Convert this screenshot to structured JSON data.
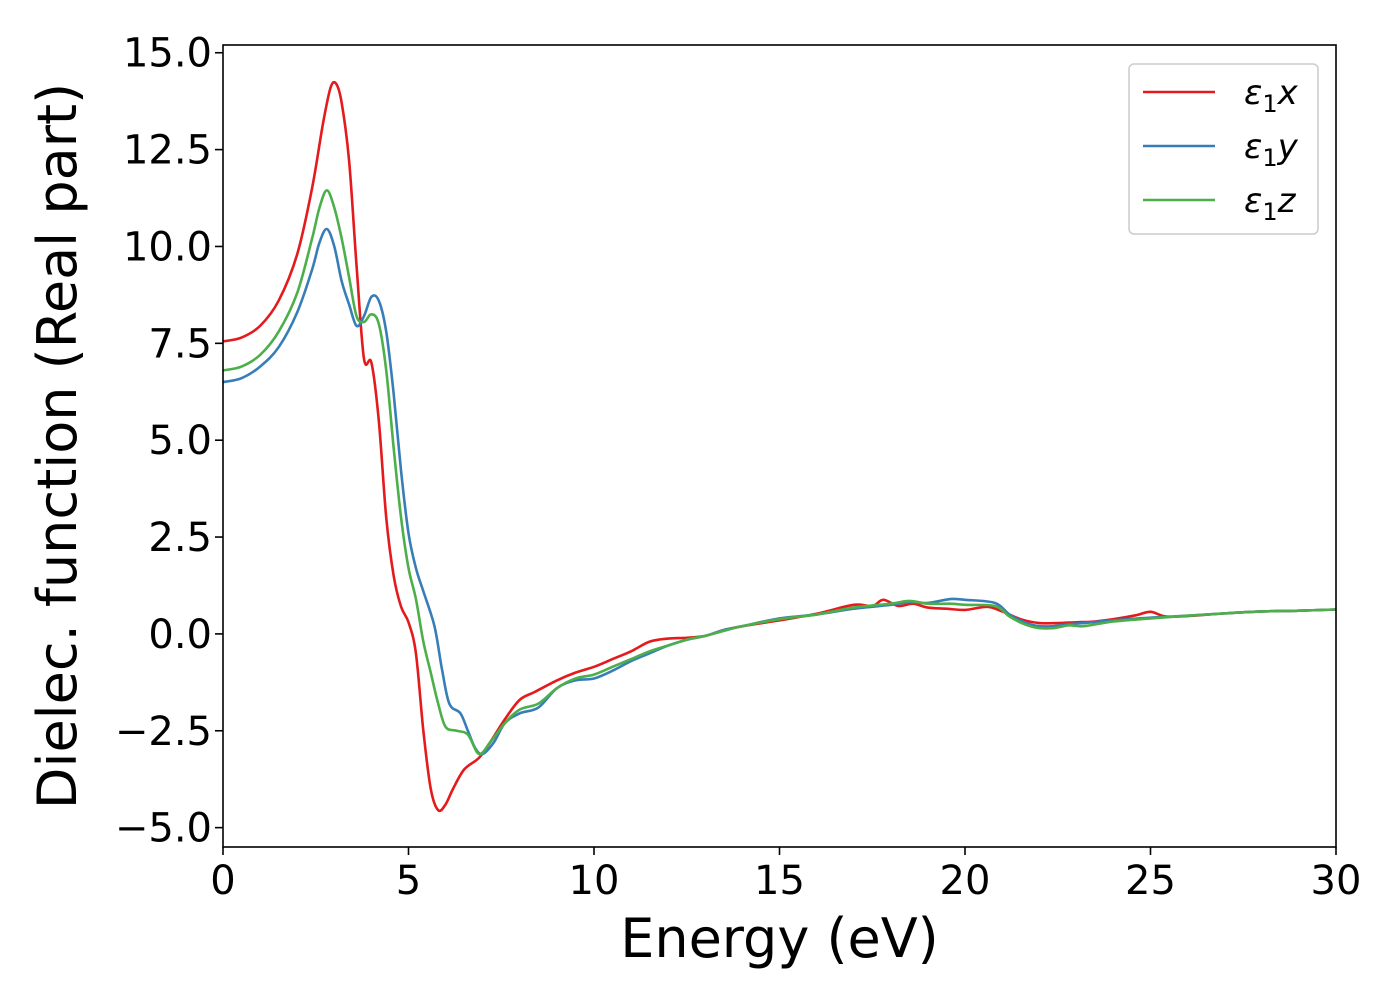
{
  "chart_data": {
    "type": "line",
    "xlabel": "Energy (eV)",
    "ylabel": "Dielec. function (Real part)",
    "xlim": [
      0,
      30
    ],
    "ylim": [
      -5.5,
      15.2
    ],
    "xticks": [
      0,
      5,
      10,
      15,
      20,
      25,
      30
    ],
    "xtick_labels": [
      "0",
      "5",
      "10",
      "15",
      "20",
      "25",
      "30"
    ],
    "yticks": [
      -5.0,
      -2.5,
      0.0,
      2.5,
      5.0,
      7.5,
      10.0,
      12.5,
      15.0
    ],
    "ytick_labels": [
      "−5.0",
      "−2.5",
      "0.0",
      "2.5",
      "5.0",
      "7.5",
      "10.0",
      "12.5",
      "15.0"
    ],
    "grid": false,
    "legend_position": "top-right",
    "series": [
      {
        "name": "ε1x",
        "name_main": "ε",
        "name_sub": "1",
        "name_var": "x",
        "color": "#e41a1c",
        "points": [
          [
            0,
            7.55
          ],
          [
            0.5,
            7.65
          ],
          [
            1.0,
            7.95
          ],
          [
            1.5,
            8.6
          ],
          [
            2.0,
            9.8
          ],
          [
            2.4,
            11.5
          ],
          [
            2.7,
            13.2
          ],
          [
            2.9,
            14.1
          ],
          [
            3.05,
            14.2
          ],
          [
            3.2,
            13.7
          ],
          [
            3.4,
            12.2
          ],
          [
            3.6,
            9.5
          ],
          [
            3.8,
            7.1
          ],
          [
            4.0,
            7.0
          ],
          [
            4.2,
            5.5
          ],
          [
            4.4,
            3.0
          ],
          [
            4.6,
            1.5
          ],
          [
            4.8,
            0.7
          ],
          [
            5.0,
            0.3
          ],
          [
            5.2,
            -0.5
          ],
          [
            5.4,
            -2.5
          ],
          [
            5.6,
            -4.0
          ],
          [
            5.8,
            -4.55
          ],
          [
            6.0,
            -4.4
          ],
          [
            6.2,
            -4.0
          ],
          [
            6.5,
            -3.5
          ],
          [
            6.9,
            -3.2
          ],
          [
            7.2,
            -2.8
          ],
          [
            7.6,
            -2.2
          ],
          [
            8.0,
            -1.7
          ],
          [
            8.4,
            -1.5
          ],
          [
            9.0,
            -1.2
          ],
          [
            9.5,
            -1.0
          ],
          [
            10.0,
            -0.85
          ],
          [
            10.5,
            -0.65
          ],
          [
            11.0,
            -0.45
          ],
          [
            11.5,
            -0.2
          ],
          [
            12.0,
            -0.12
          ],
          [
            12.5,
            -0.1
          ],
          [
            13.0,
            -0.05
          ],
          [
            13.5,
            0.1
          ],
          [
            14.0,
            0.2
          ],
          [
            15.0,
            0.35
          ],
          [
            16.0,
            0.52
          ],
          [
            17.0,
            0.75
          ],
          [
            17.5,
            0.72
          ],
          [
            17.8,
            0.88
          ],
          [
            18.2,
            0.72
          ],
          [
            18.6,
            0.78
          ],
          [
            19.0,
            0.68
          ],
          [
            19.5,
            0.65
          ],
          [
            20.0,
            0.62
          ],
          [
            20.6,
            0.7
          ],
          [
            21.0,
            0.58
          ],
          [
            21.5,
            0.38
          ],
          [
            22.0,
            0.28
          ],
          [
            22.5,
            0.28
          ],
          [
            23.0,
            0.3
          ],
          [
            23.5,
            0.32
          ],
          [
            24.0,
            0.38
          ],
          [
            24.6,
            0.48
          ],
          [
            25.0,
            0.57
          ],
          [
            25.4,
            0.45
          ],
          [
            26.0,
            0.46
          ],
          [
            27.0,
            0.53
          ],
          [
            28.0,
            0.58
          ],
          [
            29.0,
            0.6
          ],
          [
            30.0,
            0.63
          ]
        ]
      },
      {
        "name": "ε1y",
        "name_main": "ε",
        "name_sub": "1",
        "name_var": "y",
        "color": "#377eb8",
        "points": [
          [
            0,
            6.5
          ],
          [
            0.5,
            6.6
          ],
          [
            1.0,
            6.9
          ],
          [
            1.5,
            7.4
          ],
          [
            2.0,
            8.3
          ],
          [
            2.4,
            9.4
          ],
          [
            2.6,
            10.1
          ],
          [
            2.8,
            10.45
          ],
          [
            3.0,
            10.0
          ],
          [
            3.2,
            9.1
          ],
          [
            3.4,
            8.5
          ],
          [
            3.6,
            7.95
          ],
          [
            3.8,
            8.2
          ],
          [
            4.0,
            8.7
          ],
          [
            4.2,
            8.6
          ],
          [
            4.4,
            7.8
          ],
          [
            4.6,
            6.2
          ],
          [
            4.8,
            4.2
          ],
          [
            5.0,
            2.6
          ],
          [
            5.2,
            1.7
          ],
          [
            5.4,
            1.1
          ],
          [
            5.7,
            0.2
          ],
          [
            5.9,
            -0.9
          ],
          [
            6.1,
            -1.8
          ],
          [
            6.4,
            -2.05
          ],
          [
            6.6,
            -2.5
          ],
          [
            6.8,
            -2.95
          ],
          [
            7.0,
            -3.1
          ],
          [
            7.3,
            -2.8
          ],
          [
            7.6,
            -2.3
          ],
          [
            8.0,
            -2.05
          ],
          [
            8.5,
            -1.9
          ],
          [
            9.0,
            -1.4
          ],
          [
            9.5,
            -1.2
          ],
          [
            10.0,
            -1.15
          ],
          [
            10.5,
            -0.95
          ],
          [
            11.0,
            -0.7
          ],
          [
            11.5,
            -0.5
          ],
          [
            12.0,
            -0.3
          ],
          [
            12.5,
            -0.15
          ],
          [
            13.0,
            -0.05
          ],
          [
            13.5,
            0.1
          ],
          [
            14.0,
            0.2
          ],
          [
            15.0,
            0.4
          ],
          [
            16.0,
            0.5
          ],
          [
            17.0,
            0.65
          ],
          [
            18.0,
            0.75
          ],
          [
            18.5,
            0.82
          ],
          [
            19.0,
            0.8
          ],
          [
            19.6,
            0.9
          ],
          [
            20.0,
            0.88
          ],
          [
            20.8,
            0.8
          ],
          [
            21.2,
            0.5
          ],
          [
            21.6,
            0.3
          ],
          [
            22.0,
            0.2
          ],
          [
            22.4,
            0.2
          ],
          [
            22.8,
            0.25
          ],
          [
            23.2,
            0.28
          ],
          [
            24.0,
            0.35
          ],
          [
            25.0,
            0.42
          ],
          [
            26.0,
            0.47
          ],
          [
            27.0,
            0.53
          ],
          [
            28.0,
            0.58
          ],
          [
            29.0,
            0.6
          ],
          [
            30.0,
            0.63
          ]
        ]
      },
      {
        "name": "ε1z",
        "name_main": "ε",
        "name_sub": "1",
        "name_var": "z",
        "color": "#4daf4a",
        "points": [
          [
            0,
            6.8
          ],
          [
            0.5,
            6.9
          ],
          [
            1.0,
            7.2
          ],
          [
            1.5,
            7.8
          ],
          [
            2.0,
            8.8
          ],
          [
            2.4,
            10.2
          ],
          [
            2.6,
            11.0
          ],
          [
            2.8,
            11.45
          ],
          [
            3.0,
            11.0
          ],
          [
            3.2,
            10.2
          ],
          [
            3.4,
            9.2
          ],
          [
            3.6,
            8.2
          ],
          [
            3.8,
            8.05
          ],
          [
            4.0,
            8.25
          ],
          [
            4.2,
            8.0
          ],
          [
            4.4,
            6.8
          ],
          [
            4.6,
            4.8
          ],
          [
            4.8,
            3.0
          ],
          [
            5.0,
            1.7
          ],
          [
            5.2,
            0.9
          ],
          [
            5.4,
            -0.2
          ],
          [
            5.6,
            -1.0
          ],
          [
            5.8,
            -1.8
          ],
          [
            6.0,
            -2.4
          ],
          [
            6.3,
            -2.5
          ],
          [
            6.6,
            -2.6
          ],
          [
            6.9,
            -3.1
          ],
          [
            7.2,
            -2.8
          ],
          [
            7.6,
            -2.3
          ],
          [
            8.0,
            -1.95
          ],
          [
            8.5,
            -1.8
          ],
          [
            9.0,
            -1.4
          ],
          [
            9.5,
            -1.15
          ],
          [
            10.0,
            -1.05
          ],
          [
            10.5,
            -0.85
          ],
          [
            11.0,
            -0.65
          ],
          [
            11.5,
            -0.45
          ],
          [
            12.0,
            -0.3
          ],
          [
            12.5,
            -0.15
          ],
          [
            13.0,
            -0.05
          ],
          [
            13.5,
            0.08
          ],
          [
            14.0,
            0.2
          ],
          [
            15.0,
            0.38
          ],
          [
            16.0,
            0.5
          ],
          [
            17.0,
            0.68
          ],
          [
            18.0,
            0.78
          ],
          [
            18.5,
            0.85
          ],
          [
            19.0,
            0.78
          ],
          [
            19.6,
            0.78
          ],
          [
            20.0,
            0.75
          ],
          [
            20.8,
            0.72
          ],
          [
            21.2,
            0.45
          ],
          [
            21.6,
            0.25
          ],
          [
            22.0,
            0.15
          ],
          [
            22.4,
            0.15
          ],
          [
            22.8,
            0.22
          ],
          [
            23.2,
            0.2
          ],
          [
            24.0,
            0.32
          ],
          [
            25.0,
            0.4
          ],
          [
            26.0,
            0.47
          ],
          [
            27.0,
            0.53
          ],
          [
            28.0,
            0.58
          ],
          [
            29.0,
            0.6
          ],
          [
            30.0,
            0.63
          ]
        ]
      }
    ]
  }
}
